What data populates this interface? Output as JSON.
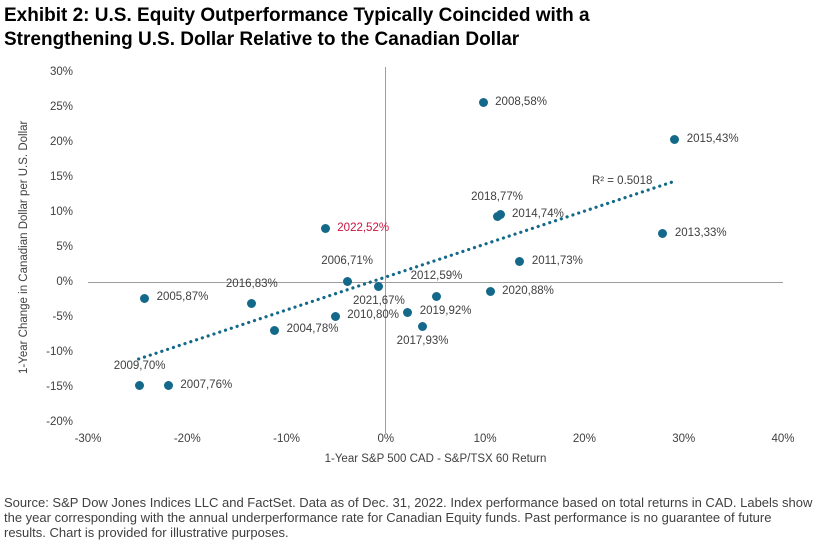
{
  "title": "Exhibit 2: U.S. Equity Outperformance Typically Coincided with a Strengthening U.S. Dollar Relative to the Canadian Dollar",
  "footer": "Source: S&P Dow Jones Indices LLC and FactSet. Data as of Dec. 31, 2022. Index performance based on total returns in CAD. Labels show the year corresponding with the annual underperformance rate for Canadian Equity funds. Past performance is no guarantee of future results. Chart is provided for illustrative purposes.",
  "chart_data": {
    "type": "scatter",
    "title": "Exhibit 2: U.S. Equity Outperformance Typically Coincided with a Strengthening U.S. Dollar Relative to the Canadian Dollar",
    "xlabel": "1-Year S&P 500 CAD - S&P/TSX 60 Return",
    "ylabel": "1-Year Change in Canadian Dollar per U.S. Dollar",
    "xlim": [
      -30,
      40
    ],
    "ylim": [
      -20,
      30
    ],
    "x_ticks": [
      "-30%",
      "-20%",
      "-10%",
      "0%",
      "10%",
      "20%",
      "30%",
      "40%"
    ],
    "y_ticks": [
      "30%",
      "25%",
      "20%",
      "15%",
      "10%",
      "5%",
      "0%",
      "-5%",
      "-10%",
      "-15%",
      "-20%"
    ],
    "grid": "zero-lines-only",
    "legend": "none",
    "points": [
      {
        "year": "2004",
        "label": "2004,78%",
        "x": -11.2,
        "y": -6.9,
        "label_pos": "right",
        "highlight": false
      },
      {
        "year": "2005",
        "label": "2005,87%",
        "x": -24.3,
        "y": -2.3,
        "label_pos": "right",
        "highlight": false
      },
      {
        "year": "2006",
        "label": "2006,71%",
        "x": -3.9,
        "y": 0.1,
        "label_pos": "above",
        "highlight": false
      },
      {
        "year": "2007",
        "label": "2007,76%",
        "x": -21.9,
        "y": -14.8,
        "label_pos": "right",
        "highlight": false
      },
      {
        "year": "2008",
        "label": "2008,58%",
        "x": 9.8,
        "y": 25.6,
        "label_pos": "right",
        "highlight": false
      },
      {
        "year": "2009",
        "label": "2009,70%",
        "x": -24.8,
        "y": -14.8,
        "label_pos": "above",
        "highlight": false
      },
      {
        "year": "2010",
        "label": "2010,80%",
        "x": -5.1,
        "y": -4.9,
        "label_pos": "right",
        "highlight": false
      },
      {
        "year": "2011",
        "label": "2011,73%",
        "x": 13.5,
        "y": 2.9,
        "label_pos": "right",
        "highlight": false
      },
      {
        "year": "2012",
        "label": "2012,59%",
        "x": 5.1,
        "y": -2.0,
        "label_pos": "above",
        "highlight": false
      },
      {
        "year": "2013",
        "label": "2013,33%",
        "x": 27.9,
        "y": 6.9,
        "label_pos": "right",
        "highlight": false
      },
      {
        "year": "2014",
        "label": "2014,74%",
        "x": 11.5,
        "y": 9.6,
        "label_pos": "right",
        "highlight": false
      },
      {
        "year": "2015",
        "label": "2015,43%",
        "x": 29.1,
        "y": 20.3,
        "label_pos": "right",
        "highlight": false
      },
      {
        "year": "2016",
        "label": "2016,83%",
        "x": -13.5,
        "y": -3.1,
        "label_pos": "above",
        "highlight": false
      },
      {
        "year": "2017",
        "label": "2017,93%",
        "x": 3.7,
        "y": -6.3,
        "label_pos": "below",
        "highlight": false
      },
      {
        "year": "2018",
        "label": "2018,77%",
        "x": 11.2,
        "y": 9.3,
        "label_pos": "above",
        "highlight": false
      },
      {
        "year": "2019",
        "label": "2019,92%",
        "x": 2.2,
        "y": -4.3,
        "label_pos": "right",
        "highlight": false
      },
      {
        "year": "2020",
        "label": "2020,88%",
        "x": 10.5,
        "y": -1.4,
        "label_pos": "right",
        "highlight": false
      },
      {
        "year": "2021",
        "label": "2021,67%",
        "x": -0.7,
        "y": -0.6,
        "label_pos": "below",
        "highlight": false
      },
      {
        "year": "2022",
        "label": "2022,52%",
        "x": -6.1,
        "y": 7.6,
        "label_pos": "right",
        "highlight": true
      }
    ],
    "trendline": {
      "style": "dotted",
      "x1": -24.9,
      "y1": -11.0,
      "x2": 29.3,
      "y2": 14.5,
      "r2_label": "R² = 0.5018",
      "r2_x": 23.8,
      "r2_y": 14.1
    },
    "colors": {
      "point": "#14698B",
      "trend": "#14698B",
      "highlight_label": "#C9133E",
      "zero_line": "#9E9E9E",
      "text": "#404040"
    }
  }
}
